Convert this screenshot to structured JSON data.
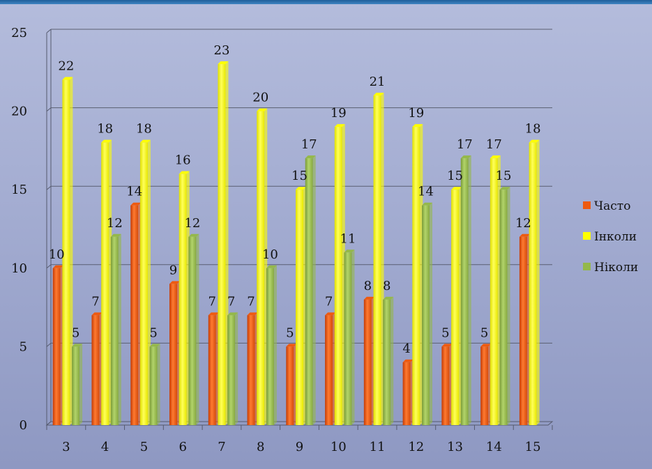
{
  "chart_data": {
    "type": "bar",
    "title": "",
    "xlabel": "",
    "ylabel": "",
    "categories": [
      "3",
      "4",
      "5",
      "6",
      "7",
      "8",
      "9",
      "10",
      "11",
      "12",
      "13",
      "14",
      "15"
    ],
    "series": [
      {
        "name": "Часто",
        "color": "#ee5a10",
        "values": [
          10,
          7,
          14,
          9,
          7,
          7,
          5,
          7,
          8,
          4,
          5,
          5,
          12
        ]
      },
      {
        "name": "Інколи",
        "color": "#ffff00",
        "values": [
          22,
          18,
          18,
          16,
          23,
          20,
          15,
          19,
          21,
          19,
          15,
          17,
          18
        ]
      },
      {
        "name": "Ніколи",
        "color": "#94b84a",
        "values": [
          5,
          12,
          5,
          12,
          7,
          10,
          17,
          11,
          8,
          14,
          17,
          15,
          null
        ]
      }
    ],
    "ylim": [
      0,
      25
    ],
    "yticks": [
      0,
      5,
      10,
      15,
      20,
      25
    ],
    "grid": true,
    "legend_position": "right"
  }
}
